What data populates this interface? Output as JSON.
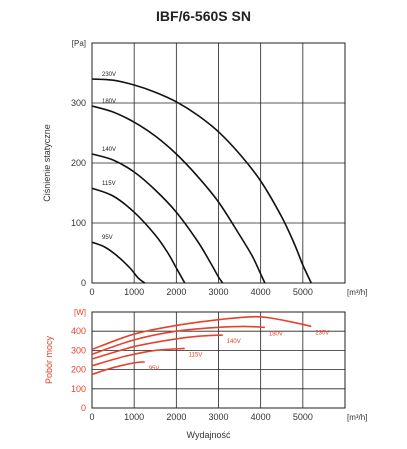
{
  "chart_data": [
    {
      "type": "line",
      "title": "IBF/6-560S SN",
      "ylabel": "Ciśnienie statyczne",
      "y_unit": "[Pa]",
      "x_unit": "[m³/h]",
      "xlim": [
        0,
        6000
      ],
      "ylim": [
        0,
        400
      ],
      "x_ticks": [
        "0",
        "1000",
        "2000",
        "3000",
        "4000",
        "5000"
      ],
      "y_ticks": [
        "0",
        "100",
        "200",
        "300"
      ],
      "grid": true,
      "series": [
        {
          "name": "230V",
          "color": "#111111",
          "x": [
            0,
            500,
            1000,
            1500,
            2000,
            2500,
            3000,
            3500,
            4000,
            4500,
            4800,
            5000,
            5200
          ],
          "y": [
            340,
            338,
            330,
            318,
            302,
            280,
            252,
            215,
            170,
            110,
            65,
            30,
            0
          ]
        },
        {
          "name": "180V",
          "color": "#111111",
          "x": [
            0,
            500,
            1000,
            1500,
            2000,
            2500,
            3000,
            3500,
            3800,
            4000,
            4100
          ],
          "y": [
            295,
            285,
            268,
            245,
            215,
            178,
            135,
            80,
            45,
            15,
            0
          ]
        },
        {
          "name": "140V",
          "color": "#111111",
          "x": [
            0,
            500,
            1000,
            1500,
            2000,
            2500,
            2800,
            3000,
            3100
          ],
          "y": [
            215,
            205,
            185,
            155,
            118,
            70,
            35,
            10,
            0
          ]
        },
        {
          "name": "115V",
          "color": "#111111",
          "x": [
            0,
            500,
            1000,
            1500,
            1800,
            2000,
            2200
          ],
          "y": [
            158,
            145,
            118,
            80,
            50,
            25,
            0
          ]
        },
        {
          "name": "95V",
          "color": "#111111",
          "x": [
            0,
            300,
            600,
            900,
            1100,
            1250
          ],
          "y": [
            68,
            60,
            45,
            25,
            8,
            0
          ]
        }
      ]
    },
    {
      "type": "line",
      "ylabel": "Pobór mocy",
      "y_unit": "[W]",
      "xlabel": "Wydajność",
      "x_unit": "[m³/h]",
      "xlim": [
        0,
        6000
      ],
      "ylim": [
        0,
        500
      ],
      "x_ticks": [
        "0",
        "1000",
        "2000",
        "3000",
        "4000",
        "5000"
      ],
      "y_ticks": [
        "0",
        "100",
        "200",
        "300",
        "400"
      ],
      "grid": true,
      "series": [
        {
          "name": "230V",
          "color": "#e8412b",
          "x": [
            0,
            1000,
            2000,
            3000,
            3800,
            4200,
            4800,
            5200
          ],
          "y": [
            305,
            385,
            430,
            460,
            475,
            470,
            445,
            425
          ]
        },
        {
          "name": "180V",
          "color": "#e8412b",
          "x": [
            0,
            1000,
            2000,
            3000,
            3600,
            4100
          ],
          "y": [
            280,
            355,
            400,
            420,
            425,
            420
          ]
        },
        {
          "name": "140V",
          "color": "#e8412b",
          "x": [
            0,
            1000,
            2000,
            2600,
            3100
          ],
          "y": [
            255,
            320,
            360,
            375,
            380
          ]
        },
        {
          "name": "115V",
          "color": "#e8412b",
          "x": [
            0,
            800,
            1500,
            2200
          ],
          "y": [
            220,
            270,
            300,
            310
          ]
        },
        {
          "name": "95V",
          "color": "#e8412b",
          "x": [
            0,
            500,
            1000,
            1250
          ],
          "y": [
            175,
            210,
            235,
            240
          ]
        }
      ]
    }
  ]
}
